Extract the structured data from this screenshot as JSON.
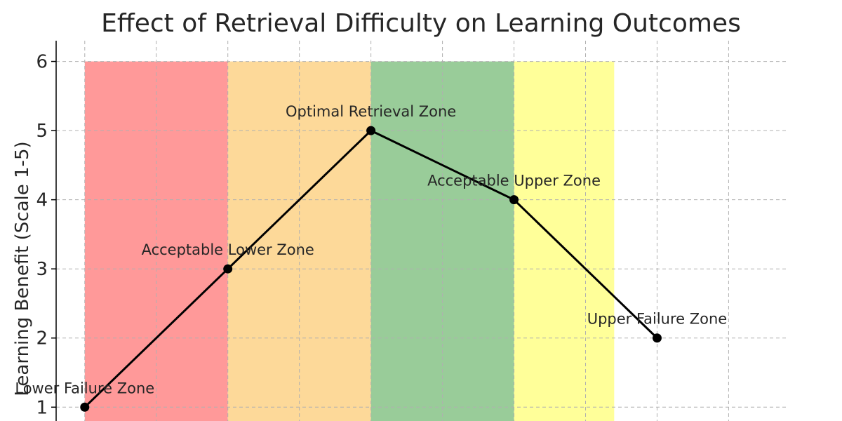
{
  "chart_data": {
    "type": "line",
    "title": "Effect of Retrieval Difficulty on Learning Outcomes",
    "xlabel": "",
    "ylabel": "Learning Benefit (Scale 1-5)",
    "x": [
      1,
      2,
      3,
      4,
      5
    ],
    "values": [
      1,
      3,
      5,
      4,
      2
    ],
    "point_labels": [
      "Lower Failure Zone",
      "Acceptable Lower Zone",
      "Optimal Retrieval Zone",
      "Acceptable Upper Zone",
      "Upper Failure Zone"
    ],
    "yticks": [
      1,
      2,
      3,
      4,
      5,
      6
    ],
    "ylim": [
      0.8,
      6.3
    ],
    "xlim": [
      0.8,
      5.9
    ],
    "grid": true,
    "line_color": "#000000",
    "zones": [
      {
        "start": 1,
        "end": 2,
        "top": 6,
        "color": "#ff9999"
      },
      {
        "start": 2,
        "end": 3,
        "top": 6,
        "color": "#fdd999"
      },
      {
        "start": 3,
        "end": 4,
        "top": 6,
        "color": "#99cc99"
      },
      {
        "start": 4,
        "end": 4.7,
        "top": 6,
        "color": "#ffff99"
      }
    ]
  }
}
